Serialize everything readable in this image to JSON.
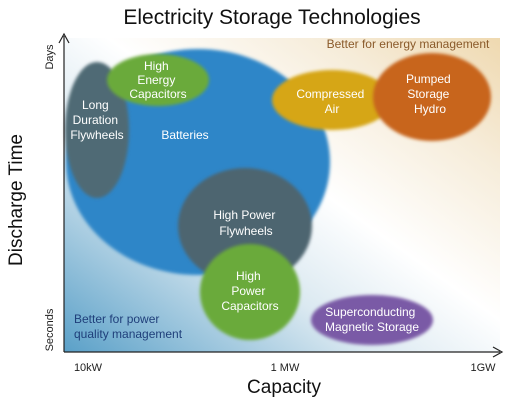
{
  "title": "Electricity Storage Technologies",
  "x_axis": {
    "label": "Capacity",
    "ticks": [
      "10kW",
      "1 MW",
      "1GW"
    ]
  },
  "y_axis": {
    "label": "Discharge Time",
    "ticks": [
      "Seconds",
      "Days"
    ]
  },
  "regions": {
    "energy_management": "Better for energy management",
    "power_quality": [
      "Better for power",
      "quality management"
    ]
  },
  "technologies": [
    {
      "id": "batteries",
      "label": [
        "Batteries"
      ],
      "color": "#2f86c8"
    },
    {
      "id": "long-duration-flywheels",
      "label": [
        "Long",
        "Duration",
        "Flywheels"
      ],
      "color": "#4f6a74"
    },
    {
      "id": "high-energy-capacitors",
      "label": [
        "High",
        "Energy",
        "Capacitors"
      ],
      "color": "#6aaa3a"
    },
    {
      "id": "compressed-air",
      "label": [
        "Compressed",
        "Air"
      ],
      "color": "#d6a614"
    },
    {
      "id": "pumped-storage-hydro",
      "label": [
        "Pumped",
        "Storage",
        "Hydro"
      ],
      "color": "#c8651f"
    },
    {
      "id": "high-power-flywheels",
      "label": [
        "High Power",
        "Flywheels"
      ],
      "color": "#4d6570"
    },
    {
      "id": "high-power-capacitors",
      "label": [
        "High",
        "Power",
        "Capacitors"
      ],
      "color": "#6aaa3a"
    },
    {
      "id": "superconducting-magnetic-storage",
      "label": [
        "Superconducting",
        "Magnetic Storage"
      ],
      "color": "#7a5aa6"
    }
  ],
  "colors": {
    "energy_note": "#8a5a2a",
    "power_note": "#1f3f7a",
    "axis": "#222222"
  }
}
